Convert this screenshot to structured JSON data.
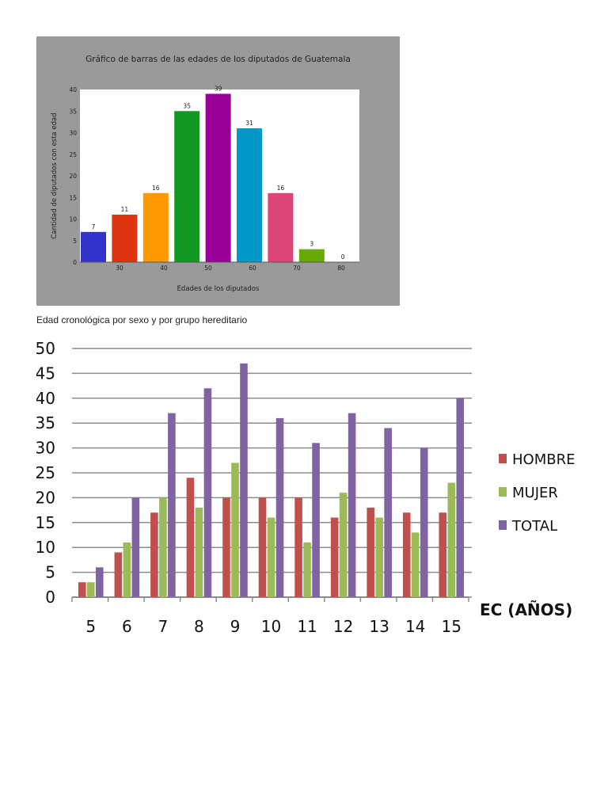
{
  "document": {
    "caption": "Edad cronológica por sexo y por grupo hereditario"
  },
  "chart_data": [
    {
      "type": "bar",
      "title": "Gráfico de barras de las edades de los diputados de Guatemala",
      "xlabel": "Edades de los diputados",
      "ylabel": "Cantidad de diputados con esta edad",
      "ylim": [
        0,
        40
      ],
      "y_ticks": [
        "0",
        "5",
        "10",
        "15",
        "20",
        "25",
        "30",
        "35",
        "40"
      ],
      "x_ticks": [
        "30",
        "40",
        "50",
        "60",
        "70",
        "80"
      ],
      "values": [
        7,
        11,
        16,
        35,
        39,
        31,
        16,
        3,
        0
      ],
      "data_labels": [
        "7",
        "11",
        "16",
        "35",
        "39",
        "31",
        "16",
        "3",
        "0"
      ],
      "colors": [
        "#3333cc",
        "#dd3311",
        "#ff9900",
        "#119922",
        "#990099",
        "#0099c6",
        "#dd4477",
        "#66aa00",
        "#b82e2e"
      ],
      "grid": false,
      "background": "#9a9a9a"
    },
    {
      "type": "bar",
      "title": "",
      "xlabel": "EC (AÑOS)",
      "ylabel": "",
      "ylim": [
        0,
        50
      ],
      "y_ticks": [
        "0",
        "5",
        "10",
        "15",
        "20",
        "25",
        "30",
        "35",
        "40",
        "45",
        "50"
      ],
      "categories": [
        "5",
        "6",
        "7",
        "8",
        "9",
        "10",
        "11",
        "12",
        "13",
        "14",
        "15"
      ],
      "series": [
        {
          "name": "HOMBRE",
          "color": "#c0504d",
          "values": [
            3,
            9,
            17,
            24,
            20,
            20,
            20,
            16,
            18,
            17,
            17
          ]
        },
        {
          "name": "MUJER",
          "color": "#9bbb59",
          "values": [
            3,
            11,
            20,
            18,
            27,
            16,
            11,
            21,
            16,
            13,
            23
          ]
        },
        {
          "name": "TOTAL",
          "color": "#8064a2",
          "values": [
            6,
            20,
            37,
            42,
            47,
            36,
            31,
            37,
            34,
            30,
            40
          ]
        }
      ],
      "grid": true,
      "legend": "right"
    }
  ]
}
